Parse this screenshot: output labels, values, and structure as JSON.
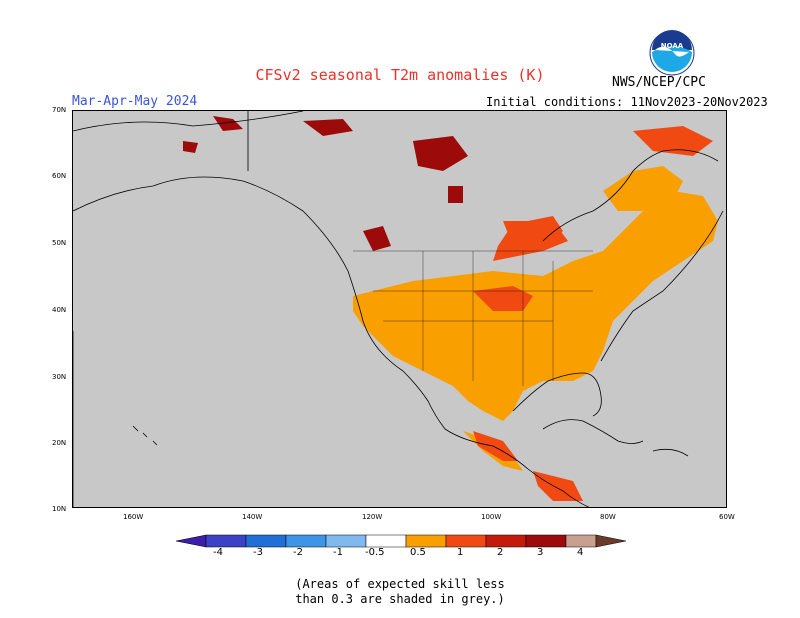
{
  "title": "CFSv2 seasonal T2m anomalies (K)",
  "period": "Mar-Apr-May 2024",
  "initial_conditions": "Initial conditions: 11Nov2023-20Nov2023",
  "agency": "NWS/NCEP/CPC",
  "logo_text": "NOAA",
  "lat_labels": [
    "70N",
    "60N",
    "50N",
    "40N",
    "30N",
    "20N",
    "10N"
  ],
  "lon_labels": [
    "160W",
    "140W",
    "120W",
    "100W",
    "80W",
    "60W"
  ],
  "colorbar": {
    "labels": [
      "-4",
      "-3",
      "-2",
      "-1",
      "-0.5",
      "0.5",
      "1",
      "2",
      "3",
      "4"
    ],
    "colors": {
      "lt_m4": "#3b1fa8",
      "m4_m3": "#3b42c6",
      "m3_m2": "#1f6fd6",
      "m2_m1": "#3c95e6",
      "m1_m05": "#7fb9f0",
      "neutral": "#ffffff",
      "p05_p1": "#f9a000",
      "p1_p2": "#f04a12",
      "p2_p3": "#c41a0a",
      "p3_p4": "#9c0a0a",
      "p4_p5": "#c8a090",
      "gt_p5": "#6b3a2a"
    }
  },
  "map_colors": {
    "ocean_grey": "#c8c8c8",
    "no_skill_grey": "#c8c8c8",
    "coast": "#000000"
  },
  "note_lines": [
    "(Areas of expected skill less",
    "than 0.3 are shaded in grey.)"
  ]
}
